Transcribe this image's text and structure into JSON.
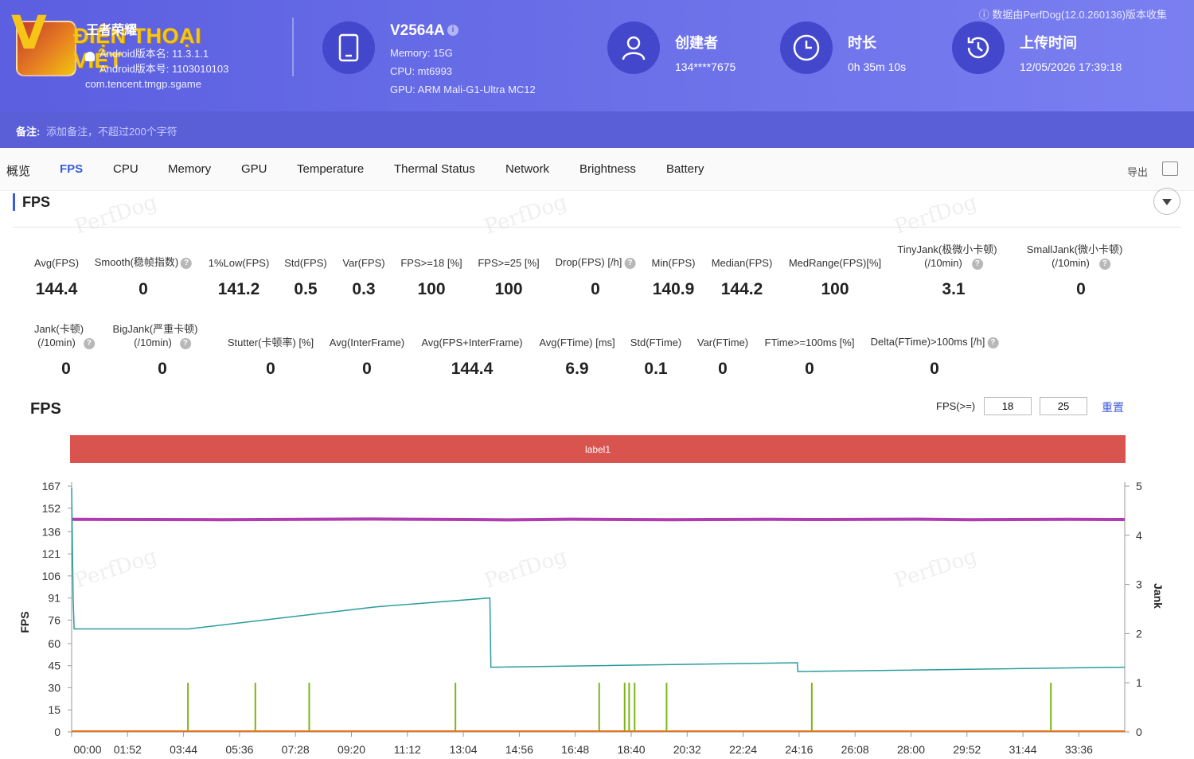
{
  "watermark": {
    "logo_letter": "V",
    "logo_text": "ĐIỆN THOẠI VIỆT",
    "perfdog": "PerfDog"
  },
  "app": {
    "name": "王者荣耀",
    "version_name": "Android版本名: 11.3.1.1",
    "version_code": "Android版本号: 1103010103",
    "package": "com.tencent.tmgp.sgame"
  },
  "device": {
    "model": "V2564A",
    "memory": "Memory: 15G",
    "cpu": "CPU: mt6993",
    "gpu": "GPU: ARM Mali-G1-Ultra MC12"
  },
  "creator": {
    "label": "创建者",
    "value": "134****7675"
  },
  "duration": {
    "label": "时长",
    "value": "0h 35m 10s"
  },
  "upload": {
    "label": "上传时间",
    "value": "12/05/2026 17:39:18"
  },
  "source_note": "数据由PerfDog(12.0.260136)版本收集",
  "note": {
    "label": "备注:",
    "placeholder": "添加备注，不超过200个字符"
  },
  "tabs": [
    "概览",
    "FPS",
    "CPU",
    "Memory",
    "GPU",
    "Temperature",
    "Thermal Status",
    "Network",
    "Brightness",
    "Battery"
  ],
  "active_tab": "FPS",
  "export_label": "导出",
  "section_title": "FPS",
  "metrics_row1": [
    {
      "label": "Avg(FPS)",
      "value": "144.4"
    },
    {
      "label": "Smooth(稳帧指数)",
      "value": "0"
    },
    {
      "label": "1%Low(FPS)",
      "value": "141.2"
    },
    {
      "label": "Std(FPS)",
      "value": "0.5"
    },
    {
      "label": "Var(FPS)",
      "value": "0.3"
    },
    {
      "label": "FPS>=18 [%]",
      "value": "100"
    },
    {
      "label": "FPS>=25 [%]",
      "value": "100"
    },
    {
      "label": "Drop(FPS) [/h]",
      "value": "0"
    },
    {
      "label": "Min(FPS)",
      "value": "140.9"
    },
    {
      "label": "Median(FPS)",
      "value": "144.2"
    },
    {
      "label": "MedRange(FPS)[%]",
      "value": "100"
    },
    {
      "label": "TinyJank(极微小卡顿)",
      "label2": "(/10min)",
      "value": "3.1"
    },
    {
      "label": "SmallJank(微小卡顿)",
      "label2": "(/10min)",
      "value": "0"
    }
  ],
  "metrics_row2": [
    {
      "label": "Jank(卡顿)",
      "label2": "(/10min)",
      "value": "0"
    },
    {
      "label": "BigJank(严重卡顿)",
      "label2": "(/10min)",
      "value": "0"
    },
    {
      "label": "Stutter(卡顿率) [%]",
      "value": "0"
    },
    {
      "label": "Avg(InterFrame)",
      "value": "0"
    },
    {
      "label": "Avg(FPS+InterFrame)",
      "value": "144.4"
    },
    {
      "label": "Avg(FTime) [ms]",
      "value": "6.9"
    },
    {
      "label": "Std(FTime)",
      "value": "0.1"
    },
    {
      "label": "Var(FTime)",
      "value": "0"
    },
    {
      "label": "FTime>=100ms [%]",
      "value": "0"
    },
    {
      "label": "Delta(FTime)>100ms [/h]",
      "value": "0"
    }
  ],
  "chart_controls": {
    "title": "FPS",
    "fps_ge_label": "FPS(>=)",
    "threshold1": "18",
    "threshold2": "25",
    "reset_label": "重置"
  },
  "colors": {
    "accent": "#3b5bdb",
    "fps_line": "#b03cb0",
    "secondary_line": "#2a9d9d",
    "jank": "#7cb518",
    "zero_line": "#e8731a",
    "label_band": "#d9534f",
    "header": "#5b5fe0"
  },
  "chart_data": {
    "type": "line",
    "label_band": "label1",
    "ylabel": "FPS",
    "y2label": "Jank",
    "yticks": [
      0,
      15,
      30,
      45,
      60,
      76,
      91,
      106,
      121,
      136,
      152,
      167
    ],
    "y2ticks": [
      0,
      1,
      2,
      3,
      4,
      5
    ],
    "ylim": [
      0,
      167
    ],
    "y2lim": [
      0,
      5
    ],
    "xticks": [
      "00:00",
      "01:52",
      "03:44",
      "05:36",
      "07:28",
      "09:20",
      "11:12",
      "13:04",
      "14:56",
      "16:48",
      "18:40",
      "20:32",
      "22:24",
      "24:16",
      "26:08",
      "28:00",
      "29:52",
      "31:44",
      "33:36"
    ],
    "x_range_seconds": [
      0,
      2110
    ],
    "series": [
      {
        "name": "FPS",
        "axis": "left",
        "x": [
          0,
          300,
          600,
          800,
          880,
          1000,
          1200,
          1400,
          1500,
          1700,
          1800,
          2000,
          2110
        ],
        "values": [
          144.4,
          144.2,
          144.6,
          144.3,
          144.1,
          144.5,
          144.2,
          144.4,
          144.3,
          144.5,
          144.2,
          144.4,
          144.3
        ]
      },
      {
        "axis": "left",
        "x": [
          0,
          3,
          5,
          235,
          610,
          838,
          840,
          1454,
          1455,
          2110
        ],
        "values": [
          166,
          90,
          70,
          70,
          85,
          91,
          44,
          47,
          41,
          44
        ]
      },
      {
        "name": "Jank",
        "axis": "right",
        "type": "spike",
        "x": [
          233,
          368,
          476,
          769,
          1057,
          1108,
          1117,
          1128,
          1192,
          1483,
          1962
        ],
        "values": [
          1,
          1,
          1,
          1,
          1,
          1,
          1,
          1,
          1,
          1,
          1
        ]
      }
    ]
  }
}
